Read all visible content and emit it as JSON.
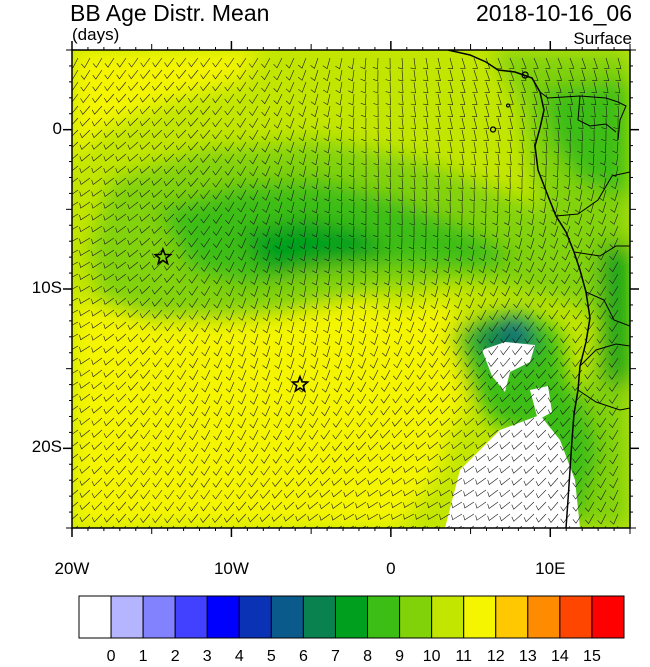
{
  "header": {
    "title": "BB Age Distr. Mean",
    "units": "(days)",
    "datetime": "2018-10-16_06",
    "level": "Surface"
  },
  "axes": {
    "lat_labels": [
      {
        "text": "0",
        "lat": 0
      },
      {
        "text": "10S",
        "lat": -10
      },
      {
        "text": "20S",
        "lat": -20
      }
    ],
    "lon_labels": [
      {
        "text": "20W",
        "lon": -20
      },
      {
        "text": "10W",
        "lon": -10
      },
      {
        "text": "0",
        "lon": 0
      },
      {
        "text": "10E",
        "lon": 10
      }
    ],
    "lon_range": [
      -20,
      15
    ],
    "lat_range": [
      -25,
      5
    ]
  },
  "colorbar": {
    "labels": [
      "0",
      "1",
      "2",
      "3",
      "4",
      "5",
      "6",
      "7",
      "8",
      "9",
      "10",
      "11",
      "12",
      "13",
      "14",
      "15"
    ],
    "colors": [
      "#ffffff",
      "#b4b4ff",
      "#8282ff",
      "#4141ff",
      "#0000ff",
      "#0a32b4",
      "#0a5a8c",
      "#0a8250",
      "#00a01e",
      "#3cbe14",
      "#82d20a",
      "#c3e600",
      "#f5f500",
      "#ffc800",
      "#ff8c00",
      "#ff4600",
      "#ff0000"
    ]
  },
  "markers": [
    {
      "name": "star-marker-west",
      "lon": -14.3,
      "lat": -8.0
    },
    {
      "name": "star-marker-south",
      "lon": -5.7,
      "lat": -16.0
    }
  ]
}
